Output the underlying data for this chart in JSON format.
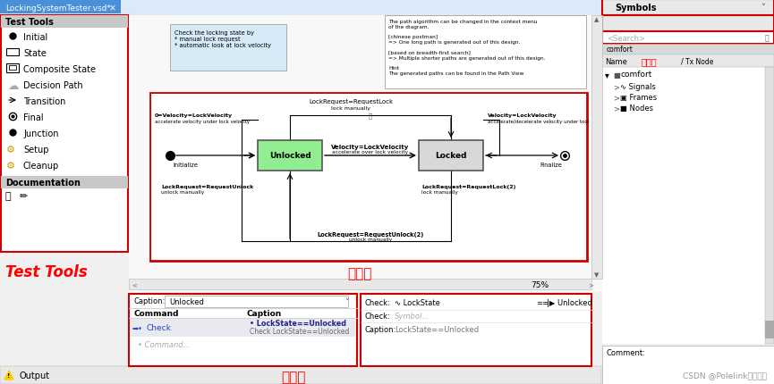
{
  "title_tab": "LockingSystemTester.vsd*",
  "bg_color": "#f0f0f0",
  "white": "#ffffff",
  "red_border": "#cc0000",
  "light_gray": "#e8e8e8",
  "mid_gray": "#d0d0d0",
  "tab_blue": "#4a90d9",
  "left_panel_title": "Test Tools",
  "left_panel_items": [
    "Initial",
    "State",
    "Composite State",
    "Decision Path",
    "Transition",
    "Final",
    "Junction",
    "Setup",
    "Cleanup"
  ],
  "left_panel_doc": "Documentation",
  "left_panel_label": "Test Tools",
  "right_panel_title": "Symbols",
  "right_db_label": "数据库",
  "right_name_col": "Name",
  "right_tx_col": "Tx Node",
  "right_comment": "Comment:",
  "center_label": "编辑区",
  "bottom_label": "输入区",
  "note1_text": "Check the locking state by\n* manual lock request\n* automatic look at lock velocity",
  "note2_text": "The path algorithm can be changed in the context menu\nof the diagram.\n\n[chinese postman]\n=> One long path is generated out of this design.\n\n[based on breadth-first search]\n=> Multiple shorter paths are generated out of this design.\n\nHint\nThe generated paths can be found in the Path View",
  "state1_label": "Unlocked",
  "state2_label": "Locked",
  "bottom_caption": "Unlocked",
  "bottom_cmd_col": "Command",
  "bottom_cap_col": "Caption",
  "bottom_check1": "LockState",
  "bottom_check1b": "Unlocked",
  "bottom_check2": "Symbol...",
  "bottom_caption2": "LockState==Unlocked",
  "watermark": "CSDN @Polelink北汇信息",
  "output_label": "Output",
  "zoom_pct": "75%"
}
